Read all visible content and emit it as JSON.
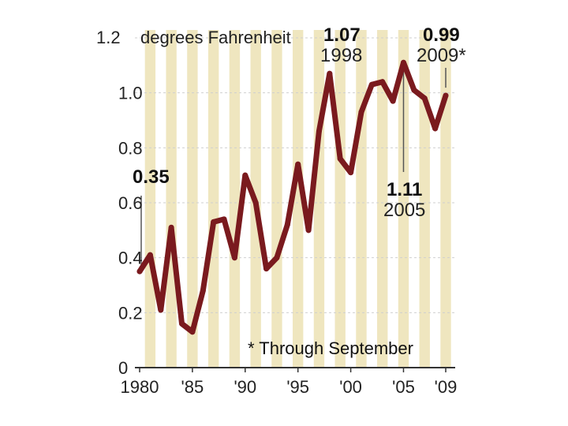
{
  "colors": {
    "line": "#7a1a1e",
    "stripe": "#efe6bf",
    "grid": "#cfcfcf",
    "axis": "#333333",
    "leader": "#555555"
  },
  "chart_data": {
    "type": "line",
    "ylabel": "degrees Fahrenheit",
    "ylim": [
      0,
      1.2
    ],
    "xlim": [
      1980,
      2009
    ],
    "grid": true,
    "y_ticks": [
      {
        "value": 1.2,
        "label": "1.2"
      },
      {
        "value": 1.0,
        "label": "1.0"
      },
      {
        "value": 0.8,
        "label": "0.8"
      },
      {
        "value": 0.6,
        "label": "0.6"
      },
      {
        "value": 0.4,
        "label": "0.4"
      },
      {
        "value": 0.2,
        "label": "0.2"
      },
      {
        "value": 0,
        "label": "0"
      }
    ],
    "x_ticks": [
      {
        "value": 1980,
        "label": "1980"
      },
      {
        "value": 1985,
        "label": "'85"
      },
      {
        "value": 1990,
        "label": "'90"
      },
      {
        "value": 1995,
        "label": "'95"
      },
      {
        "value": 2000,
        "label": "'00"
      },
      {
        "value": 2005,
        "label": "'05"
      },
      {
        "value": 2009,
        "label": "'09"
      }
    ],
    "series": [
      {
        "x": [
          1980,
          1981,
          1982,
          1983,
          1984,
          1985,
          1986,
          1987,
          1988,
          1989,
          1990,
          1991,
          1992,
          1993,
          1994,
          1995,
          1996,
          1997,
          1998,
          1999,
          2000,
          2001,
          2002,
          2003,
          2004,
          2005,
          2006,
          2007,
          2008,
          2009
        ],
        "values": [
          0.35,
          0.41,
          0.21,
          0.51,
          0.16,
          0.13,
          0.28,
          0.53,
          0.54,
          0.4,
          0.7,
          0.6,
          0.36,
          0.4,
          0.52,
          0.74,
          0.5,
          0.86,
          1.07,
          0.76,
          0.71,
          0.93,
          1.03,
          1.04,
          0.97,
          1.11,
          1.01,
          0.98,
          0.87,
          0.99
        ]
      }
    ],
    "annotations": [
      {
        "value": "0.35",
        "year": ""
      },
      {
        "value": "1.07",
        "year": "1998"
      },
      {
        "value": "0.99",
        "year": "2009*"
      },
      {
        "value": "1.11",
        "year": "2005"
      }
    ],
    "note": "* Through September"
  }
}
